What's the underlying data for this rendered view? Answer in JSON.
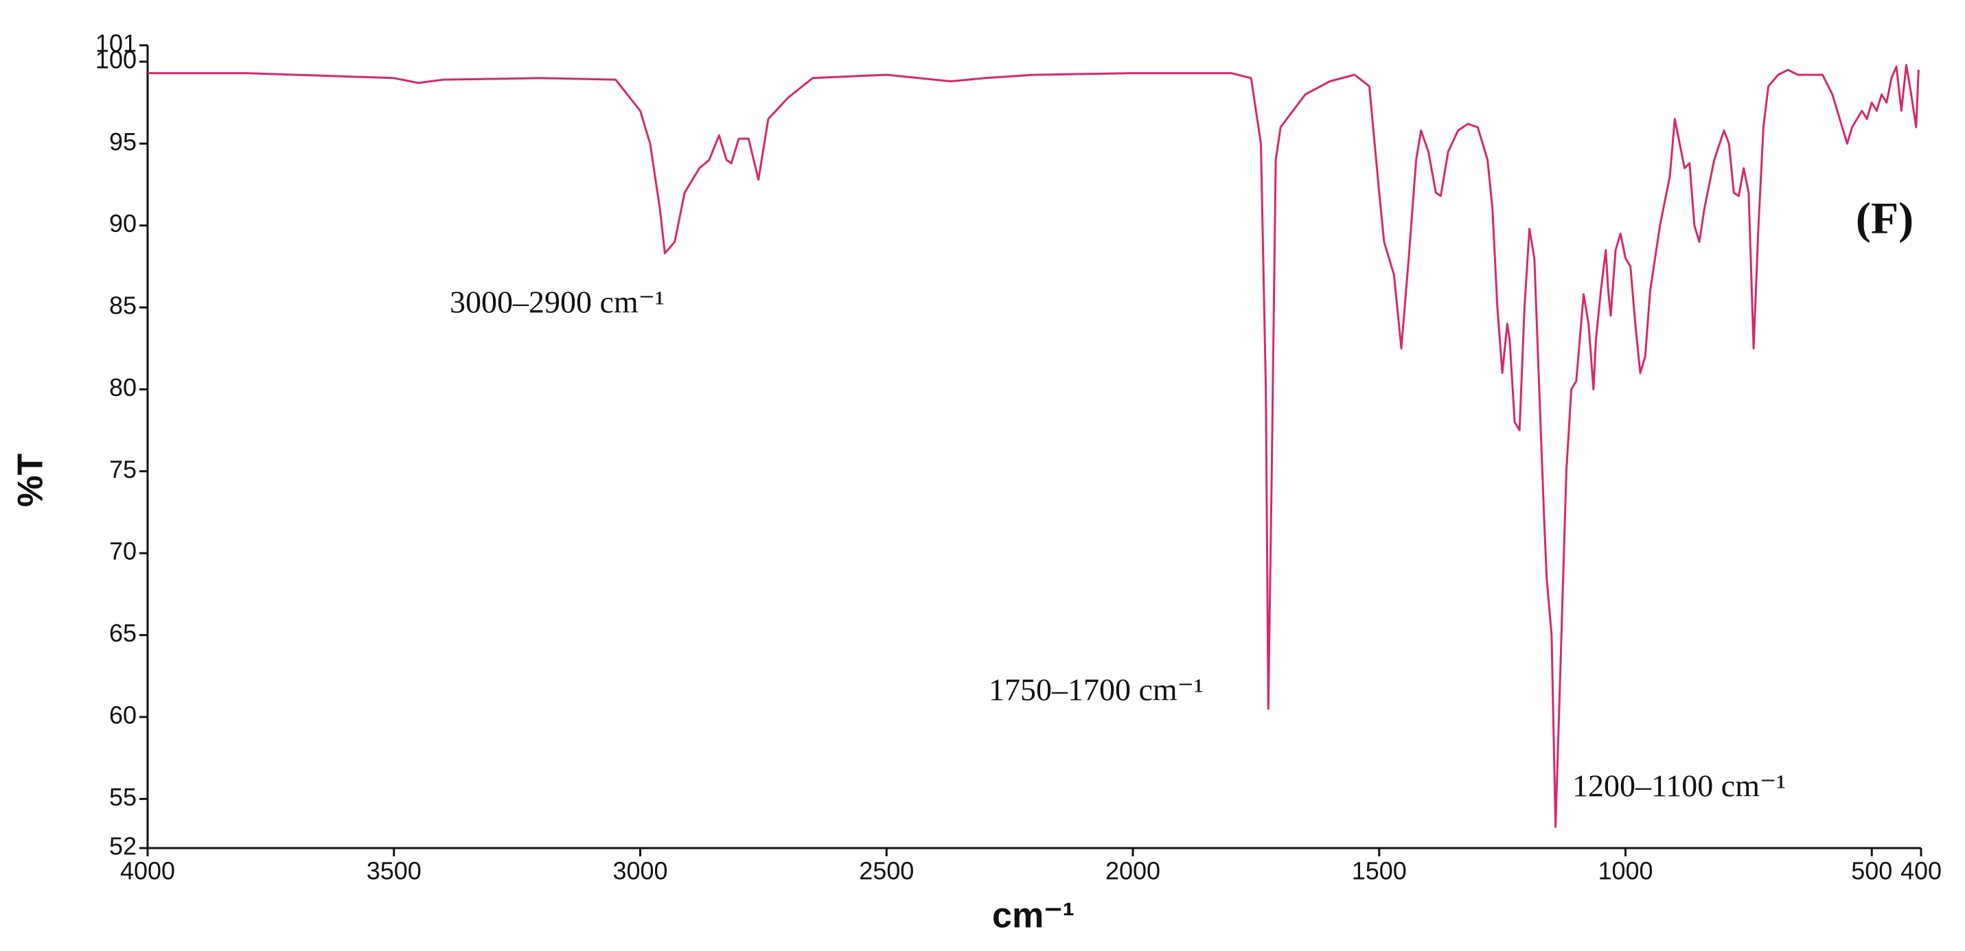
{
  "chart_data": {
    "type": "line",
    "x_label": "cm⁻¹",
    "y_label": "%T",
    "panel_label": "(F)",
    "annotations": [
      "3000–2900 cm⁻¹",
      "1750–1700 cm⁻¹",
      "1200–1100 cm⁻¹"
    ],
    "xlim": [
      4000,
      400
    ],
    "ylim": [
      52,
      101
    ],
    "xticks": [
      4000,
      3500,
      3000,
      2500,
      2000,
      1500,
      1000,
      500,
      400
    ],
    "yticks": [
      52,
      55,
      60,
      65,
      70,
      75,
      80,
      85,
      90,
      95,
      100,
      101
    ],
    "grid": false,
    "x": [
      4000,
      3800,
      3600,
      3500,
      3450,
      3400,
      3200,
      3050,
      3000,
      2980,
      2960,
      2950,
      2930,
      2910,
      2880,
      2860,
      2840,
      2825,
      2815,
      2800,
      2780,
      2760,
      2740,
      2700,
      2650,
      2500,
      2370,
      2300,
      2200,
      2000,
      1800,
      1760,
      1740,
      1730,
      1725,
      1718,
      1710,
      1700,
      1650,
      1600,
      1550,
      1520,
      1500,
      1490,
      1470,
      1455,
      1440,
      1425,
      1415,
      1400,
      1385,
      1375,
      1360,
      1340,
      1320,
      1300,
      1280,
      1270,
      1260,
      1250,
      1240,
      1235,
      1225,
      1215,
      1205,
      1195,
      1185,
      1175,
      1165,
      1160,
      1150,
      1142,
      1135,
      1120,
      1110,
      1100,
      1090,
      1085,
      1075,
      1065,
      1060,
      1050,
      1040,
      1035,
      1030,
      1020,
      1010,
      1000,
      990,
      980,
      970,
      960,
      950,
      930,
      910,
      900,
      890,
      880,
      870,
      860,
      850,
      840,
      820,
      800,
      790,
      780,
      770,
      760,
      750,
      740,
      730,
      720,
      710,
      690,
      670,
      650,
      600,
      580,
      560,
      550,
      540,
      520,
      510,
      500,
      490,
      480,
      470,
      460,
      450,
      440,
      430,
      420,
      410,
      405
    ],
    "series": [
      {
        "color": "#d6286e",
        "values": [
          99.3,
          99.3,
          99.1,
          99.0,
          98.7,
          98.9,
          99.0,
          98.9,
          97,
          95,
          91,
          88.3,
          89,
          92,
          93.5,
          94,
          95.5,
          94,
          93.8,
          95.3,
          95.3,
          92.8,
          96.5,
          97.8,
          99.0,
          99.2,
          98.8,
          99.0,
          99.2,
          99.3,
          99.3,
          99,
          95,
          80,
          60.5,
          75,
          94,
          96,
          98,
          98.8,
          99.2,
          98.5,
          92,
          89,
          87,
          82.5,
          88,
          94,
          95.8,
          94.5,
          92,
          91.8,
          94.5,
          95.8,
          96.2,
          96,
          94,
          91,
          85,
          81,
          84,
          83,
          78,
          77.5,
          85,
          89.8,
          88,
          80,
          72,
          68.5,
          65,
          53.3,
          60,
          75,
          80,
          80.5,
          84,
          85.8,
          84,
          80,
          83,
          86,
          88.5,
          86,
          84.5,
          88.5,
          89.5,
          88,
          87.5,
          84,
          81,
          82,
          86,
          90,
          93,
          96.5,
          95,
          93.5,
          93.8,
          90,
          89,
          91,
          94,
          95.8,
          95,
          92,
          91.8,
          93.5,
          92,
          82.5,
          90,
          96,
          98.5,
          99.2,
          99.5,
          99.2,
          99.2,
          98,
          96,
          95,
          96,
          97,
          96.5,
          97.5,
          97,
          98,
          97.5,
          99,
          99.7,
          97,
          99.8,
          98,
          96,
          99.5
        ]
      }
    ]
  }
}
